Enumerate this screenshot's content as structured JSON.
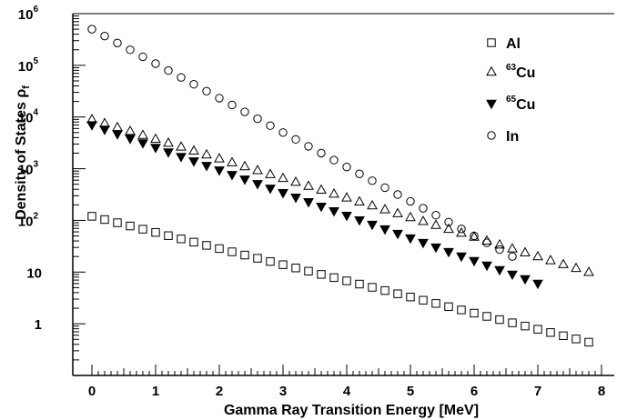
{
  "chart_data": {
    "type": "scatter",
    "title": "",
    "xlabel": "Gamma Ray Transition Energy [MeV]",
    "ylabel": "Density of States ρ",
    "ylabel_subscript": "f",
    "xlim": [
      -0.3,
      8.2
    ],
    "ylim": [
      0.1,
      1000000
    ],
    "yscale": "log",
    "x_ticks": [
      "0",
      "1",
      "2",
      "3",
      "4",
      "5",
      "6",
      "7",
      "8"
    ],
    "y_tick_labels": [
      {
        "value": 1,
        "base": "1",
        "exp": ""
      },
      {
        "value": 10,
        "base": "10",
        "exp": ""
      },
      {
        "value": 100,
        "base": "10",
        "exp": "2"
      },
      {
        "value": 1000,
        "base": "10",
        "exp": "3"
      },
      {
        "value": 10000,
        "base": "10",
        "exp": "4"
      },
      {
        "value": 100000,
        "base": "10",
        "exp": "5"
      },
      {
        "value": 1000000,
        "base": "10",
        "exp": "6"
      }
    ],
    "grid": false,
    "legend_position": "top-right",
    "series": [
      {
        "name": "Al",
        "legend_sup": "",
        "legend_base": "Al",
        "marker": "open-square",
        "x_start": 0,
        "x_step": 0.2,
        "count": 40,
        "y_first": 120,
        "y_last": 0.44
      },
      {
        "name": "63Cu",
        "legend_sup": "63",
        "legend_base": "Cu",
        "marker": "open-triangle-up",
        "x_start": 0,
        "x_step": 0.2,
        "count": 40,
        "y_first": 9000,
        "y_last": 10
      },
      {
        "name": "65Cu",
        "legend_sup": "65",
        "legend_base": "Cu",
        "marker": "filled-triangle-down",
        "x_start": 0,
        "x_step": 0.2,
        "count": 36,
        "y_first": 7000,
        "y_last": 6
      },
      {
        "name": "In",
        "legend_sup": "",
        "legend_base": "In",
        "marker": "open-circle",
        "x_start": 0,
        "x_step": 0.2,
        "count": 34,
        "y_first": 500000,
        "y_last": 20
      }
    ]
  }
}
